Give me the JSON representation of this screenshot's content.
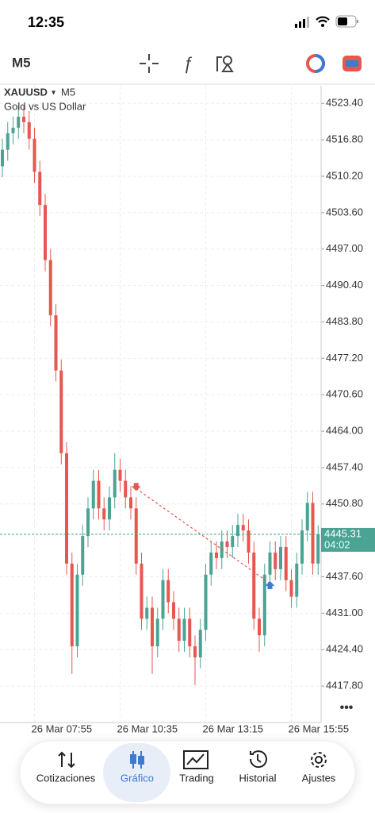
{
  "status_bar": {
    "time": "12:35"
  },
  "toolbar": {
    "timeframe": "M5"
  },
  "chart_data": {
    "type": "candlestick",
    "symbol": "XAUUSD",
    "timeframe": "M5",
    "description": "Gold vs US Dollar",
    "categories": [
      null,
      null,
      null,
      null,
      null,
      null,
      "26 Mar 07:55",
      null,
      null,
      null,
      null,
      null,
      null,
      null,
      null,
      null,
      null,
      null,
      null,
      null,
      null,
      null,
      "26 Mar 10:35",
      null,
      null,
      null,
      null,
      null,
      null,
      null,
      null,
      null,
      null,
      null,
      null,
      null,
      null,
      null,
      "26 Mar 13:15",
      null,
      null,
      null,
      null,
      null,
      null,
      null,
      null,
      null,
      null,
      null,
      null,
      null,
      null,
      null,
      "26 Mar 15:55",
      null,
      null,
      null,
      null,
      null
    ],
    "open": [
      4512,
      4515,
      4518,
      4519,
      4521,
      4520,
      4517,
      4511,
      4505,
      4495,
      4485,
      4475,
      4460,
      4440,
      4425,
      4438,
      4445,
      4450,
      4455,
      4450,
      4448,
      4452,
      4457,
      4455,
      4452,
      4450,
      4440,
      4430,
      4432,
      4425,
      4430,
      4437,
      4433,
      4430,
      4426,
      4430,
      4425,
      4423,
      4428,
      4438,
      4442,
      4441,
      4444,
      4443,
      4445,
      4447,
      4446,
      4442,
      4430,
      4427,
      4438,
      4442,
      4439,
      4443,
      4437,
      4434,
      4440,
      4446,
      4451,
      4440
    ],
    "high": [
      4517,
      4520,
      4521,
      4523,
      4523,
      4522,
      4519,
      4513,
      4507,
      4497,
      4487,
      4477,
      4462,
      4442,
      4440,
      4447,
      4452,
      4457,
      4457,
      4452,
      4454,
      4460,
      4459,
      4457,
      4454,
      4452,
      4442,
      4434,
      4434,
      4432,
      4439,
      4439,
      4435,
      4432,
      4432,
      4432,
      4427,
      4430,
      4440,
      4444,
      4444,
      4446,
      4446,
      4447,
      4449,
      4449,
      4448,
      4444,
      4432,
      4440,
      4444,
      4444,
      4445,
      4445,
      4439,
      4442,
      4448,
      4453,
      4453,
      4447
    ],
    "low": [
      4510,
      4513,
      4516,
      4517,
      4518,
      4515,
      4509,
      4503,
      4493,
      4483,
      4473,
      4458,
      4438,
      4420,
      4423,
      4436,
      4443,
      4448,
      4448,
      4446,
      4446,
      4450,
      4453,
      4450,
      4448,
      4438,
      4428,
      4428,
      4420,
      4423,
      4428,
      4431,
      4428,
      4424,
      4424,
      4423,
      4418,
      4421,
      4426,
      4436,
      4439,
      4439,
      4441,
      4441,
      4443,
      4444,
      4440,
      4428,
      4424,
      4425,
      4436,
      4437,
      4437,
      4435,
      4432,
      4432,
      4438,
      4444,
      4438,
      4438
    ],
    "close": [
      4515,
      4518,
      4519,
      4521,
      4520,
      4517,
      4511,
      4505,
      4495,
      4485,
      4475,
      4460,
      4440,
      4425,
      4438,
      4445,
      4450,
      4455,
      4450,
      4448,
      4452,
      4457,
      4455,
      4452,
      4450,
      4440,
      4430,
      4432,
      4425,
      4430,
      4437,
      4433,
      4430,
      4426,
      4430,
      4425,
      4423,
      4428,
      4438,
      4442,
      4441,
      4444,
      4443,
      4445,
      4447,
      4446,
      4442,
      4430,
      4427,
      4438,
      4442,
      4439,
      4443,
      4437,
      4434,
      4440,
      4446,
      4451,
      4440,
      4445.31
    ],
    "up_color": "#4aa393",
    "down_color": "#e5574f",
    "ylim": [
      4411.2,
      4526.6
    ],
    "yticks": [
      {
        "value": 4417.8,
        "label": "4417.80"
      },
      {
        "value": 4424.4,
        "label": "4424.40"
      },
      {
        "value": 4431.0,
        "label": "4431.00"
      },
      {
        "value": 4437.6,
        "label": "4437.60"
      },
      {
        "value": 4450.8,
        "label": "4450.80"
      },
      {
        "value": 4457.4,
        "label": "4457.40"
      },
      {
        "value": 4464.0,
        "label": "4464.00"
      },
      {
        "value": 4470.6,
        "label": "4470.60"
      },
      {
        "value": 4477.2,
        "label": "4477.20"
      },
      {
        "value": 4483.8,
        "label": "4483.80"
      },
      {
        "value": 4490.4,
        "label": "4490.40"
      },
      {
        "value": 4497.0,
        "label": "4497.00"
      },
      {
        "value": 4503.6,
        "label": "4503.60"
      },
      {
        "value": 4510.2,
        "label": "4510.20"
      },
      {
        "value": 4516.8,
        "label": "4516.80"
      },
      {
        "value": 4523.4,
        "label": "4523.40"
      }
    ],
    "grid": true,
    "last_price": 4445.31,
    "countdown": "04:02",
    "trade": {
      "entry": 4453.6,
      "exit": 4436.4
    }
  },
  "nav": {
    "items": [
      "Cotizaciones",
      "Gráfico",
      "Trading",
      "Historial",
      "Ajustes"
    ]
  }
}
